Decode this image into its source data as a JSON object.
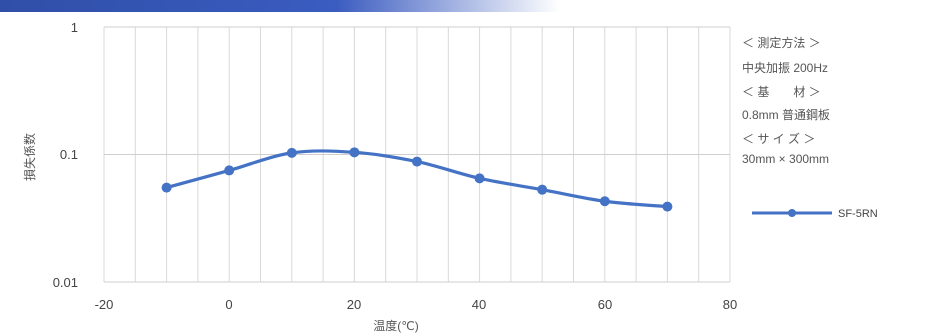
{
  "chart_data": {
    "type": "line",
    "xlabel": "温度(℃)",
    "ylabel": "損失係数",
    "xlim": [
      -20,
      80
    ],
    "ylim": [
      0.01,
      1
    ],
    "y_scale": "log",
    "grid": true,
    "x_ticks": [
      "-20",
      "0",
      "20",
      "40",
      "60",
      "80"
    ],
    "y_ticks": [
      "1",
      "0.1",
      "0.01"
    ],
    "series": [
      {
        "name": "SF-5RN",
        "color": "#4472c4",
        "x": [
          -10,
          0,
          10,
          20,
          30,
          40,
          50,
          60,
          70
        ],
        "y": [
          0.055,
          0.075,
          0.103,
          0.104,
          0.088,
          0.065,
          0.053,
          0.043,
          0.039
        ]
      }
    ],
    "legend_position": "right",
    "annotations": [
      "＜ 測定方法 ＞",
      "中央加振 200Hz",
      "＜ 基　　材 ＞",
      "0.8mm 普通鋼板",
      "＜ サ イ ズ ＞",
      "30mm × 300mm"
    ]
  }
}
